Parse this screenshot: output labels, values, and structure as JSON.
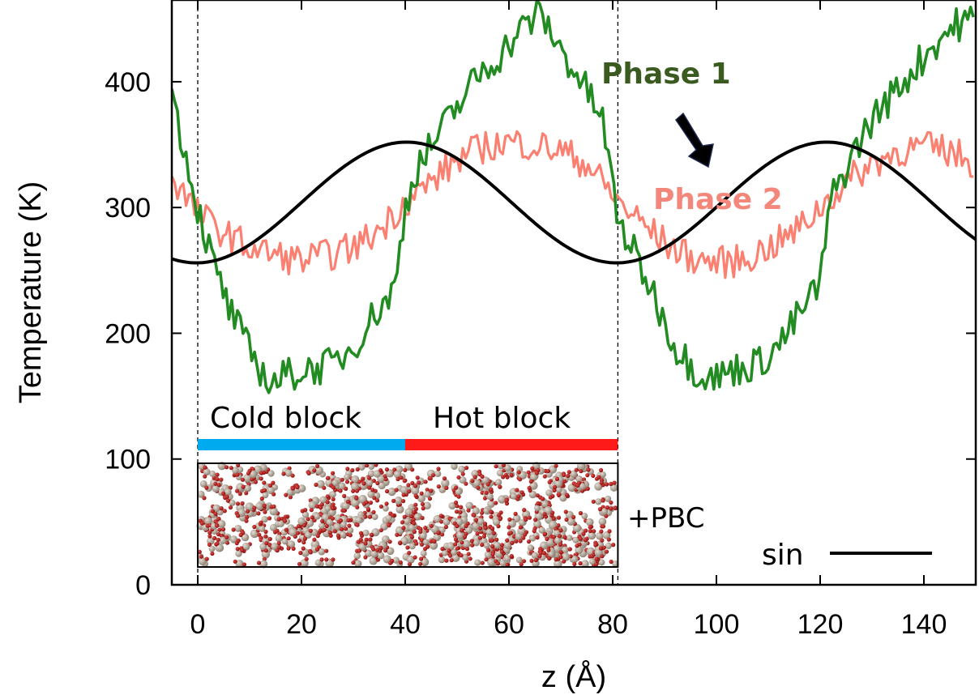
{
  "chart_data": {
    "type": "line",
    "xlabel": "z (Å)",
    "ylabel": "Temperature (K)",
    "xlim": [
      -5,
      150
    ],
    "ylim": [
      0,
      465
    ],
    "x_ticks": [
      0,
      20,
      40,
      60,
      80,
      100,
      120,
      140
    ],
    "y_ticks": [
      0,
      100,
      200,
      300,
      400
    ],
    "grid": false,
    "legend": {
      "position": "bottom-right",
      "entries": [
        "sin"
      ]
    },
    "series": [
      {
        "name": "Phase 1",
        "color": "#228b22",
        "x": [
          -5,
          0,
          3,
          6,
          10,
          14,
          18,
          22,
          26,
          30,
          34,
          38,
          40,
          42,
          46,
          50,
          54,
          58,
          62,
          66,
          70,
          74,
          78,
          81,
          84,
          88,
          92,
          96,
          100,
          104,
          108,
          112,
          116,
          120,
          122,
          126,
          130,
          134,
          138,
          142,
          146,
          150
        ],
        "y": [
          390,
          300,
          255,
          220,
          185,
          160,
          168,
          172,
          175,
          190,
          215,
          235,
          300,
          330,
          355,
          380,
          405,
          420,
          440,
          455,
          425,
          400,
          370,
          290,
          265,
          230,
          190,
          170,
          165,
          172,
          176,
          190,
          215,
          240,
          305,
          340,
          370,
          390,
          410,
          430,
          445,
          450
        ]
      },
      {
        "name": "Phase 2",
        "color": "#fa8072",
        "x": [
          -5,
          0,
          5,
          10,
          15,
          20,
          25,
          30,
          35,
          40,
          45,
          50,
          55,
          60,
          65,
          70,
          75,
          81,
          85,
          90,
          95,
          100,
          105,
          110,
          115,
          120,
          125,
          130,
          135,
          140,
          145,
          150
        ],
        "y": [
          325,
          295,
          280,
          268,
          262,
          258,
          262,
          268,
          282,
          305,
          320,
          338,
          348,
          352,
          350,
          345,
          335,
          305,
          290,
          272,
          260,
          256,
          258,
          268,
          280,
          300,
          320,
          335,
          345,
          348,
          345,
          335
        ]
      },
      {
        "name": "sin",
        "color": "#000000",
        "function": "304 + 48*sin(2*pi*(z-20)/81)",
        "mean": 304,
        "amplitude": 48,
        "period": 81,
        "phase_shift": 20
      }
    ],
    "annotations": {
      "phase1_label": "Phase 1",
      "phase2_label": "Phase 2",
      "cold_block_label": "Cold block",
      "hot_block_label": "Hot block",
      "pbc_label": "+PBC",
      "legend_label": "sin",
      "cold_block_range": [
        0,
        40
      ],
      "hot_block_range": [
        40,
        81
      ],
      "dashed_lines_x": [
        0,
        81
      ],
      "cold_color": "#00aaee",
      "hot_color": "#ff1a1a",
      "phase1_label_color": "#3a5a1f",
      "phase2_label_color": "#f4877b",
      "arrow_color": "#000000"
    }
  }
}
